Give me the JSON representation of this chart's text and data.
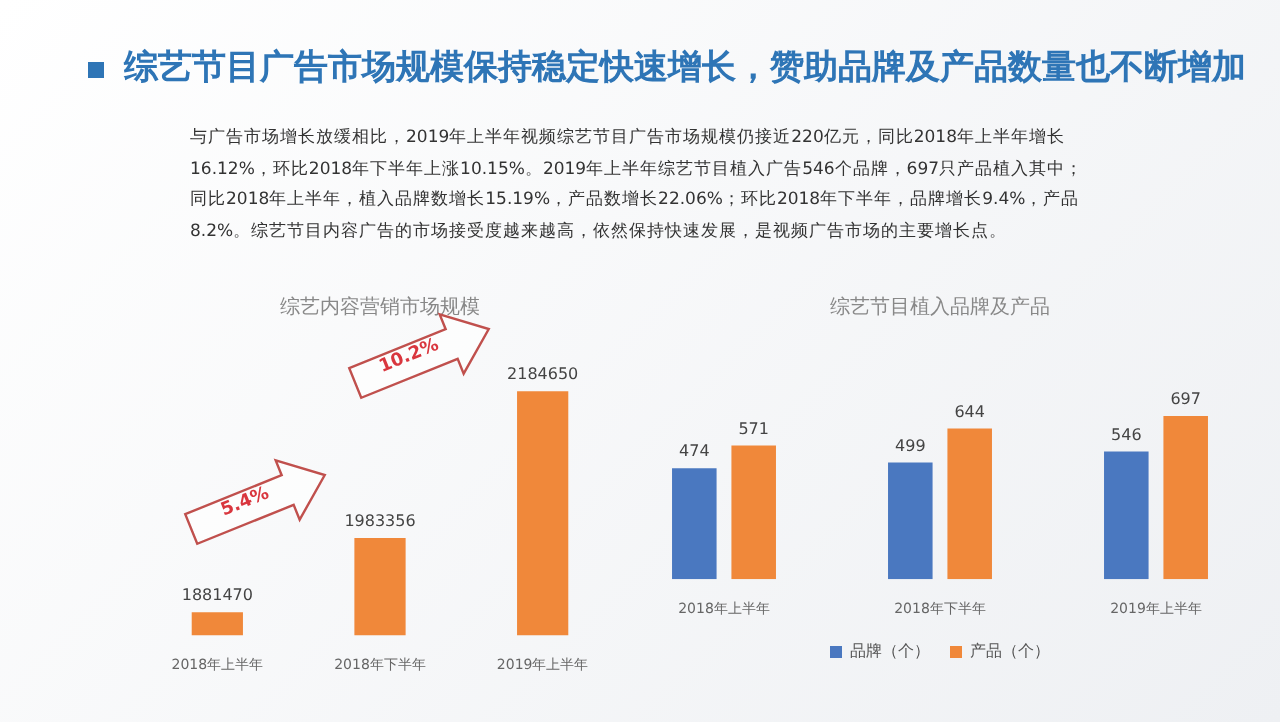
{
  "chart_data": [
    {
      "type": "other",
      "title": "综艺节目广告市场规模保持稳定快速增长，赞助品牌及产品数量也不断增加",
      "subtitle": "与广告市场增长放缓相比，2019年上半年视频综艺节目广告市场规模仍接近220亿元，同比2018年上半年增长16.12%，环比2018年下半年上涨10.15%。2019年上半年综艺节目植入广告546个品牌，697只产品植入其中；同比2018年上半年，植入品牌数增长15.19%，产品数增长22.06%；环比2018年下半年，品牌增长9.4%，产品8.2%。综艺节目内容广告的市场接受度越来越高，依然保持快速发展，是视频广告市场的主要增长点。"
    },
    {
      "type": "bar",
      "title": "综艺内容营销市场规模",
      "categories": [
        "2018年上半年",
        "2018年下半年",
        "2019年上半年"
      ],
      "values": [
        1881470,
        1983356,
        2184650
      ],
      "color": "#f0883a",
      "data_labels": true,
      "annotations": [
        "5.4%",
        "10.2%"
      ]
    },
    {
      "type": "bar",
      "title": "综艺节目植入品牌及产品",
      "categories": [
        "2018年上半年",
        "2018年下半年",
        "2019年上半年"
      ],
      "series": [
        {
          "name": "品牌（个）",
          "color": "#4a78c0",
          "values": [
            474,
            499,
            546
          ]
        },
        {
          "name": "产品（个）",
          "color": "#f0883a",
          "values": [
            571,
            644,
            697
          ]
        }
      ],
      "data_labels": true,
      "legend": "bottom"
    }
  ]
}
